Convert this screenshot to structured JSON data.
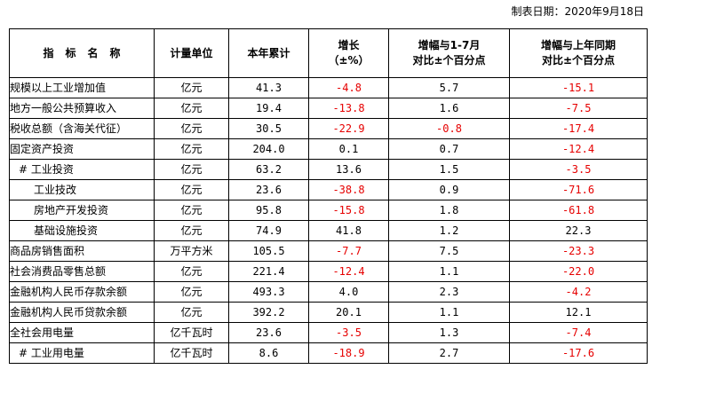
{
  "date_label": "制表日期：2020年9月18日",
  "header": {
    "indicator": "指标名称",
    "unit": "计量单位",
    "cumulative": "本年累计",
    "growth_line1": "增长",
    "growth_line2": "（±%）",
    "vs_jan_jul_line1": "增幅与1-7月",
    "vs_jan_jul_line2": "对比±个百分点",
    "vs_last_year_line1": "增幅与上年同期",
    "vs_last_year_line2": "对比±个百分点"
  },
  "colors": {
    "negative": "#e60000",
    "text": "#000000",
    "border": "#000000"
  },
  "rows": [
    {
      "name": "规模以上工业增加值",
      "unit": "亿元",
      "cumulative": "41.3",
      "growth": "-4.8",
      "vs_jan_jul": "5.7",
      "vs_last_year": "-15.1"
    },
    {
      "name": "地方一般公共预算收入",
      "unit": "亿元",
      "cumulative": "19.4",
      "growth": "-13.8",
      "vs_jan_jul": "1.6",
      "vs_last_year": "-7.5"
    },
    {
      "name": "税收总额（含海关代征）",
      "unit": "亿元",
      "cumulative": "30.5",
      "growth": "-22.9",
      "vs_jan_jul": "-0.8",
      "vs_last_year": "-17.4"
    },
    {
      "name": "固定资产投资",
      "unit": "亿元",
      "cumulative": "204.0",
      "growth": "0.1",
      "vs_jan_jul": "0.7",
      "vs_last_year": "-12.4"
    },
    {
      "name": "# 工业投资",
      "unit": "亿元",
      "cumulative": "63.2",
      "growth": "13.6",
      "vs_jan_jul": "1.5",
      "vs_last_year": "-3.5"
    },
    {
      "name": "工业技改",
      "unit": "亿元",
      "cumulative": "23.6",
      "growth": "-38.8",
      "vs_jan_jul": "0.9",
      "vs_last_year": "-71.6"
    },
    {
      "name": "房地产开发投资",
      "unit": "亿元",
      "cumulative": "95.8",
      "growth": "-15.8",
      "vs_jan_jul": "1.8",
      "vs_last_year": "-61.8"
    },
    {
      "name": "基础设施投资",
      "unit": "亿元",
      "cumulative": "74.9",
      "growth": "41.8",
      "vs_jan_jul": "1.2",
      "vs_last_year": "22.3"
    },
    {
      "name": "商品房销售面积",
      "unit": "万平方米",
      "cumulative": "105.5",
      "growth": "-7.7",
      "vs_jan_jul": "7.5",
      "vs_last_year": "-23.3"
    },
    {
      "name": "社会消费品零售总额",
      "unit": "亿元",
      "cumulative": "221.4",
      "growth": "-12.4",
      "vs_jan_jul": "1.1",
      "vs_last_year": "-22.0"
    },
    {
      "name": "金融机构人民币存款余额",
      "unit": "亿元",
      "cumulative": "493.3",
      "growth": "4.0",
      "vs_jan_jul": "2.3",
      "vs_last_year": "-4.2"
    },
    {
      "name": "金融机构人民币贷款余额",
      "unit": "亿元",
      "cumulative": "392.2",
      "growth": "20.1",
      "vs_jan_jul": "1.1",
      "vs_last_year": "12.1"
    },
    {
      "name": "全社会用电量",
      "unit": "亿千瓦时",
      "cumulative": "23.6",
      "growth": "-3.5",
      "vs_jan_jul": "1.3",
      "vs_last_year": "-7.4"
    },
    {
      "name": "# 工业用电量",
      "unit": "亿千瓦时",
      "cumulative": "8.6",
      "growth": "-18.9",
      "vs_jan_jul": "2.7",
      "vs_last_year": "-17.6"
    }
  ]
}
